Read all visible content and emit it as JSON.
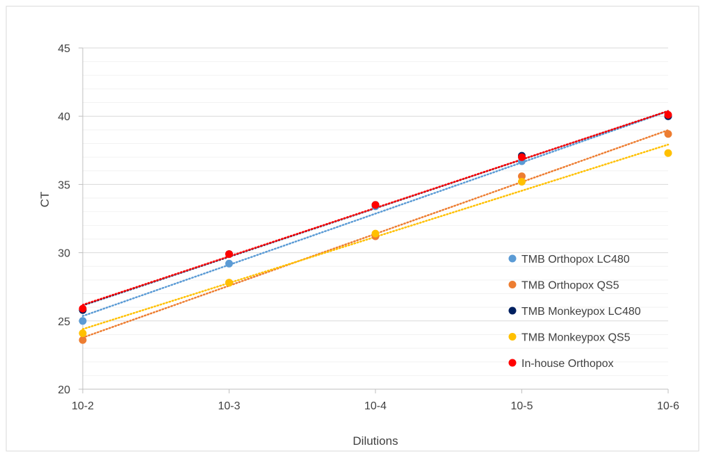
{
  "chart_data": {
    "type": "scatter",
    "title": "",
    "xlabel": "Dilutions",
    "ylabel": "CT",
    "categories": [
      "10-2",
      "10-3",
      "10-4",
      "10-5",
      "10-6"
    ],
    "ylim": [
      20,
      45
    ],
    "y_ticks": [
      20,
      25,
      30,
      35,
      40,
      45
    ],
    "y_minor_step": 1,
    "grid": true,
    "legend_position": "right",
    "series": [
      {
        "name": "TMB Orthopox LC480",
        "color": "#5b9bd5",
        "values": [
          25.0,
          29.2,
          33.4,
          36.7,
          40.0
        ],
        "trendline": "linear"
      },
      {
        "name": "TMB Orthopox QS5",
        "color": "#ed7d31",
        "values": [
          23.6,
          27.8,
          31.2,
          35.6,
          38.7
        ],
        "trendline": "linear"
      },
      {
        "name": "TMB Monkeypox LC480",
        "color": "#002060",
        "values": [
          25.8,
          29.9,
          33.5,
          37.1,
          40.0
        ],
        "trendline": "linear"
      },
      {
        "name": "TMB Monkeypox QS5",
        "color": "#ffc000",
        "values": [
          24.1,
          27.8,
          31.4,
          35.2,
          37.3
        ],
        "trendline": "linear"
      },
      {
        "name": "In-house Orthopox",
        "color": "#ff0000",
        "values": [
          25.9,
          29.9,
          33.5,
          37.0,
          40.1
        ],
        "trendline": "linear"
      }
    ]
  }
}
